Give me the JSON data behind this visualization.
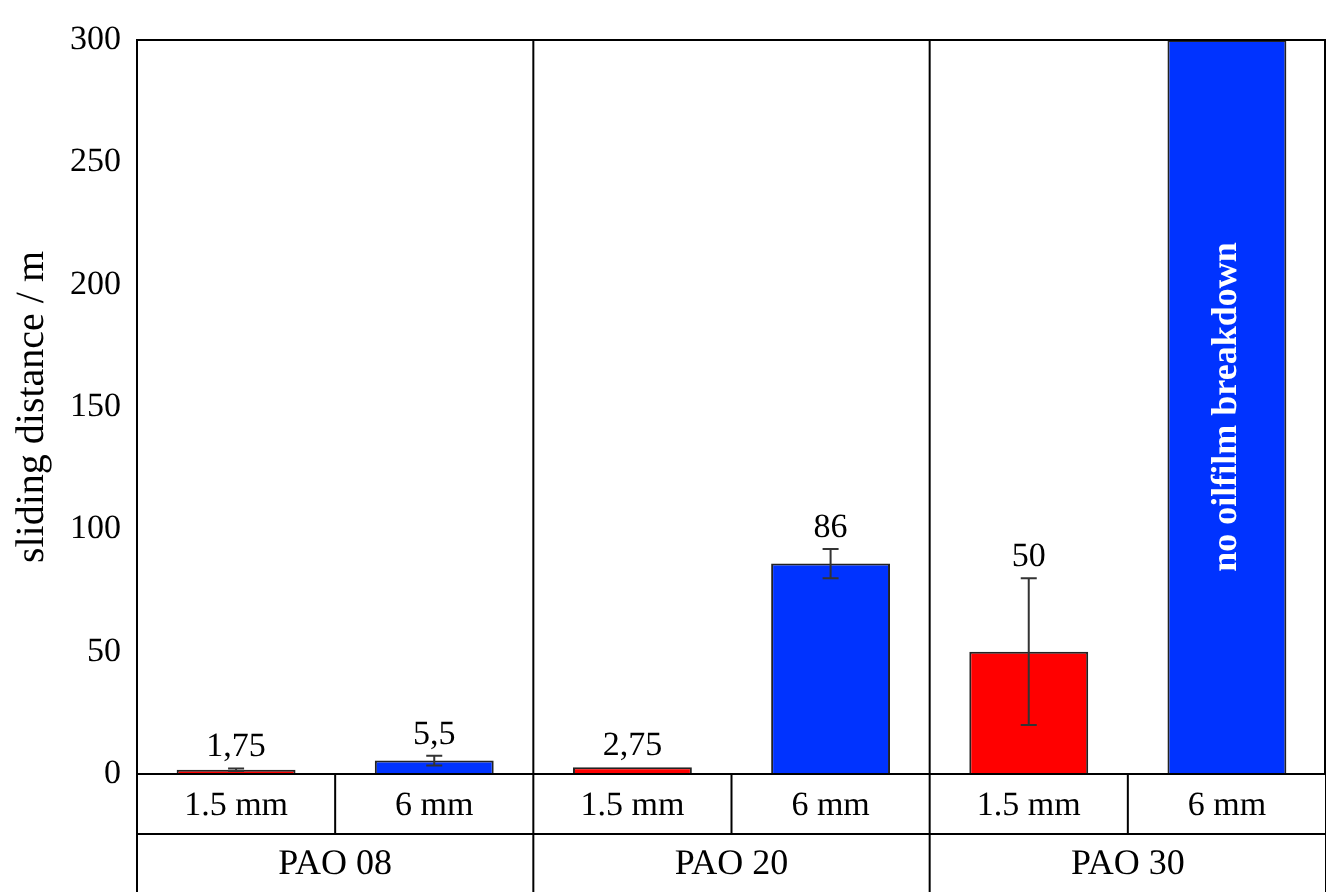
{
  "chart_data": {
    "type": "bar",
    "ylabel": "sliding distance / m",
    "categories": [
      "1.5 mm",
      "6 mm",
      "1.5 mm",
      "6 mm",
      "1.5 mm",
      "6 mm"
    ],
    "values": [
      1.75,
      5.5,
      2.75,
      86,
      50,
      300
    ],
    "colors": [
      "#ff0000",
      "#0033ff",
      "#ff0000",
      "#0033ff",
      "#ff0000",
      "#0033ff"
    ],
    "errors": [
      0.5,
      2,
      null,
      6,
      30,
      null
    ],
    "value_labels": [
      "1,75",
      "5,5",
      "2,75",
      "86",
      "50",
      null
    ],
    "annotations": [
      "PAO 08",
      "PAO 20",
      "PAO 30",
      "no oilfilm breakdown"
    ],
    "ylim": [
      0,
      300
    ],
    "yticks": [
      0,
      50,
      100,
      150,
      200,
      250,
      300
    ],
    "grid": false,
    "legend": false
  }
}
